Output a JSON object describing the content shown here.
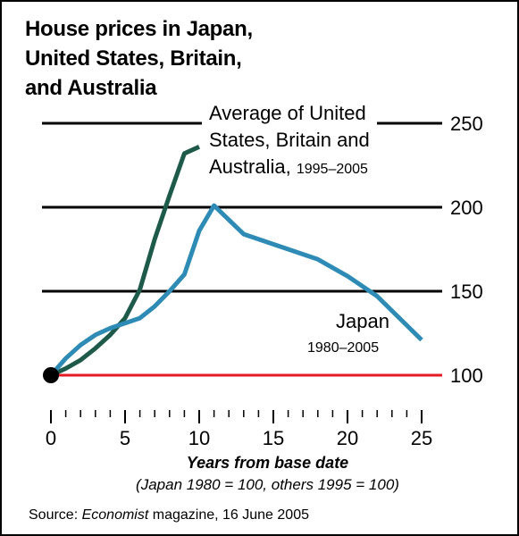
{
  "title_lines": [
    "House prices in Japan,",
    "United States, Britain,",
    "and Australia"
  ],
  "annotations": {
    "avg_line1": "Average of United",
    "avg_line2": "States, Britain and",
    "avg_line3_main": "Australia,",
    "avg_line3_years": "1995–2005",
    "japan_name": "Japan",
    "japan_years": "1980–2005"
  },
  "xlabel": "Years from base date",
  "xsub": "(Japan 1980 = 100, others 1995 = 100)",
  "source": {
    "prefix": "Source:",
    "publication": "Economist",
    "suffix": "magazine,  16 June 2005"
  },
  "colors": {
    "japan": "#2e8bb5",
    "average": "#1e5a4a",
    "baseline": "#e51b24",
    "gridline": "#000000"
  },
  "chart_data": {
    "type": "line",
    "title": "House prices in Japan, United States, Britain, and Australia",
    "xlabel": "Years from base date",
    "ylabel": "",
    "xlim": [
      0,
      25
    ],
    "ylim": [
      100,
      250
    ],
    "x_ticks": [
      0,
      5,
      10,
      15,
      20,
      25
    ],
    "y_ticks": [
      100,
      150,
      200,
      250
    ],
    "gridlines": [
      150,
      200,
      250
    ],
    "baseline": 100,
    "series": [
      {
        "name": "Average of United States, Britain and Australia, 1995–2005",
        "color": "#1e5a4a",
        "x": [
          0,
          1,
          2,
          3,
          4,
          5,
          6,
          7,
          8,
          9,
          10
        ],
        "y": [
          100,
          104,
          109,
          116,
          124,
          134,
          151,
          181,
          207,
          232,
          236
        ]
      },
      {
        "name": "Japan 1980–2005",
        "color": "#2e8bb5",
        "x": [
          0,
          1,
          2,
          3,
          4,
          5,
          6,
          7,
          8,
          9,
          10,
          11,
          13,
          15,
          18,
          20,
          22,
          25
        ],
        "y": [
          100,
          110,
          118,
          124,
          128,
          131,
          134,
          141,
          150,
          160,
          186,
          201,
          184,
          178,
          169,
          159,
          147,
          121
        ]
      }
    ]
  }
}
